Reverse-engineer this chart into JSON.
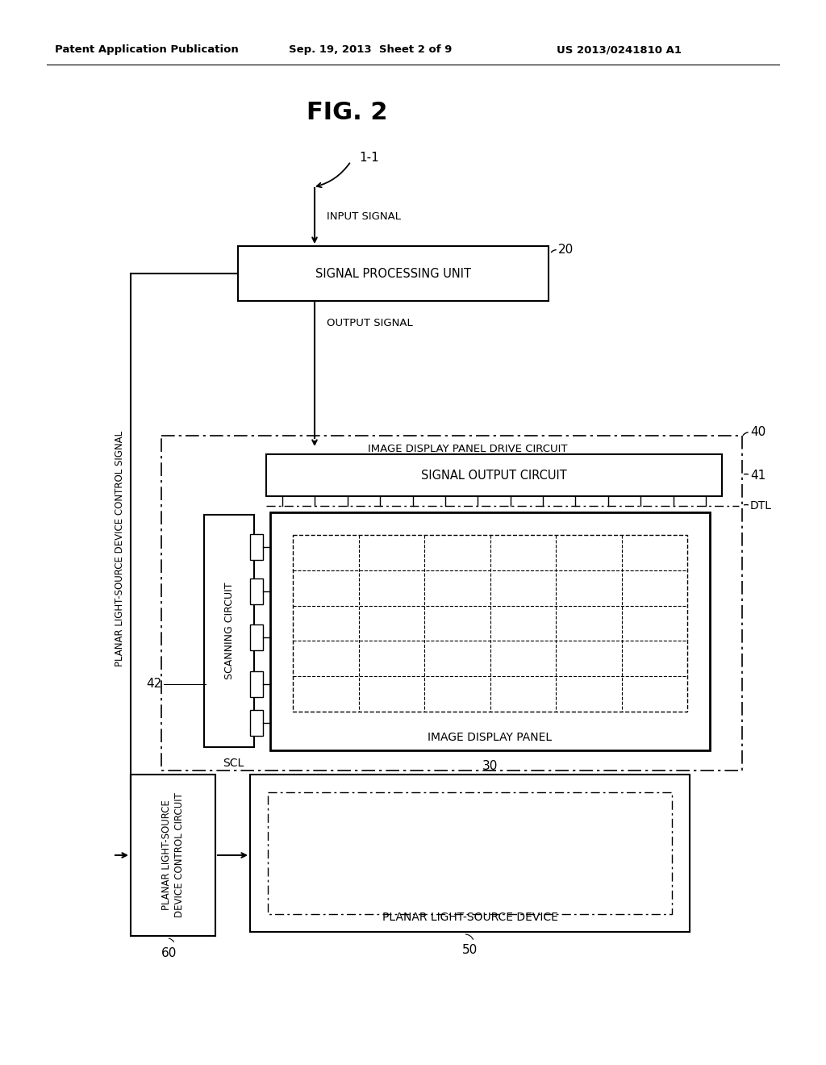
{
  "bg_color": "#ffffff",
  "header_left": "Patent Application Publication",
  "header_mid": "Sep. 19, 2013  Sheet 2 of 9",
  "header_right": "US 2013/0241810 A1",
  "fig_label": "FIG. 2",
  "ref_11": "1-1",
  "ref_20": "20",
  "ref_30": "30",
  "ref_40": "40",
  "ref_41": "41",
  "ref_42": "42",
  "ref_60": "60",
  "ref_50": "50",
  "label_input_signal": "INPUT SIGNAL",
  "label_output_signal": "OUTPUT SIGNAL",
  "label_spu": "SIGNAL PROCESSING UNIT",
  "label_idpdc": "IMAGE DISPLAY PANEL DRIVE CIRCUIT",
  "label_soc": "SIGNAL OUTPUT CIRCUIT",
  "label_dtl": "DTL",
  "label_scl": "SCL",
  "label_scanning": "SCANNING CIRCUIT",
  "label_idp": "IMAGE DISPLAY PANEL",
  "label_plscc_line1": "PLANAR LIGHT-SOURCE",
  "label_plscc_line2": "DEVICE CONTROL CIRCUIT",
  "label_plsd": "PLANAR LIGHT-SOURCE DEVICE",
  "label_plscs": "PLANAR LIGHT-SOURCE DEVICE CONTROL SIGNAL"
}
